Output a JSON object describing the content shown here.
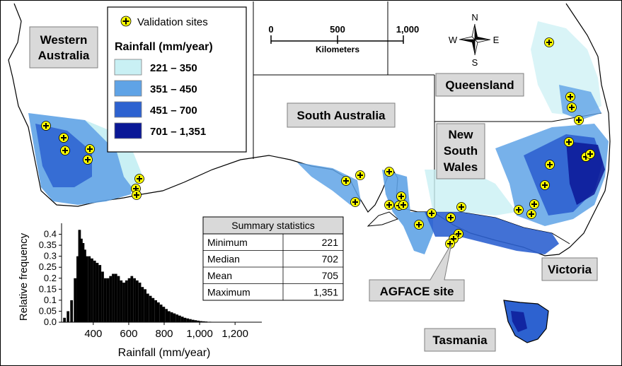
{
  "legend": {
    "sites_label": "Validation sites",
    "title": "Rainfall (mm/year)",
    "classes": [
      {
        "label": "221 – 350",
        "color": "#c9f0f4"
      },
      {
        "label": "351 – 450",
        "color": "#5fa3e6"
      },
      {
        "label": "451 – 700",
        "color": "#2d62d0"
      },
      {
        "label": "701 – 1,351",
        "color": "#0a1896"
      }
    ]
  },
  "scale_bar": {
    "ticks": [
      "0",
      "500",
      "1,000"
    ],
    "unit": "Kilometers"
  },
  "north_arrow": {
    "n": "N",
    "s": "S",
    "e": "E",
    "w": "W"
  },
  "states": {
    "wa": [
      "Western",
      "Australia"
    ],
    "sa": [
      "South Australia"
    ],
    "qld": [
      "Queensland"
    ],
    "nsw": [
      "New",
      "South",
      "Wales"
    ],
    "vic": [
      "Victoria"
    ],
    "tas": [
      "Tasmania"
    ]
  },
  "agface_label": "AGFACE site",
  "summary": {
    "title": "Summary statistics",
    "rows": [
      {
        "stat": "Minimum",
        "value": "221"
      },
      {
        "stat": "Median",
        "value": "702"
      },
      {
        "stat": "Mean",
        "value": "705"
      },
      {
        "stat": "Maximum",
        "value": "1,351"
      }
    ]
  },
  "colors": {
    "site_marker": "#ffff00",
    "histogram": "#000000"
  },
  "chart_data": {
    "type": "bar",
    "xlabel": "Rainfall (mm/year)",
    "ylabel": "Relative frequency",
    "xlim": [
      221,
      1351
    ],
    "ylim": [
      0,
      0.45
    ],
    "xticks": [
      400,
      600,
      800,
      1000,
      1200
    ],
    "xtick_labels": [
      "400",
      "600",
      "800",
      "1,000",
      "1,200"
    ],
    "yticks": [
      0,
      0.05,
      0.1,
      0.15,
      0.2,
      0.25,
      0.3,
      0.35,
      0.4
    ],
    "ytick_labels": [
      "0.0",
      "0.05",
      "0.1",
      "0.15",
      "0.2",
      "0.25",
      "0.3",
      "0.35",
      "0.4"
    ],
    "bins": [
      [
        230,
        0.02
      ],
      [
        250,
        0.05
      ],
      [
        270,
        0.1
      ],
      [
        290,
        0.2
      ],
      [
        305,
        0.3
      ],
      [
        315,
        0.42
      ],
      [
        325,
        0.38
      ],
      [
        335,
        0.36
      ],
      [
        345,
        0.33
      ],
      [
        355,
        0.3
      ],
      [
        370,
        0.3
      ],
      [
        385,
        0.29
      ],
      [
        400,
        0.28
      ],
      [
        415,
        0.27
      ],
      [
        430,
        0.26
      ],
      [
        445,
        0.23
      ],
      [
        460,
        0.2
      ],
      [
        475,
        0.2
      ],
      [
        490,
        0.21
      ],
      [
        505,
        0.22
      ],
      [
        520,
        0.22
      ],
      [
        535,
        0.21
      ],
      [
        550,
        0.19
      ],
      [
        565,
        0.18
      ],
      [
        580,
        0.19
      ],
      [
        595,
        0.2
      ],
      [
        610,
        0.21
      ],
      [
        625,
        0.2
      ],
      [
        640,
        0.19
      ],
      [
        655,
        0.18
      ],
      [
        670,
        0.16
      ],
      [
        685,
        0.15
      ],
      [
        700,
        0.13
      ],
      [
        715,
        0.12
      ],
      [
        730,
        0.11
      ],
      [
        745,
        0.1
      ],
      [
        760,
        0.09
      ],
      [
        775,
        0.08
      ],
      [
        790,
        0.07
      ],
      [
        805,
        0.06
      ],
      [
        820,
        0.05
      ],
      [
        835,
        0.045
      ],
      [
        850,
        0.04
      ],
      [
        865,
        0.035
      ],
      [
        880,
        0.03
      ],
      [
        895,
        0.025
      ],
      [
        910,
        0.02
      ],
      [
        925,
        0.017
      ],
      [
        940,
        0.014
      ],
      [
        955,
        0.011
      ],
      [
        970,
        0.009
      ],
      [
        985,
        0.007
      ],
      [
        1000,
        0.005
      ],
      [
        1015,
        0.004
      ],
      [
        1030,
        0.003
      ],
      [
        1050,
        0.002
      ]
    ]
  }
}
